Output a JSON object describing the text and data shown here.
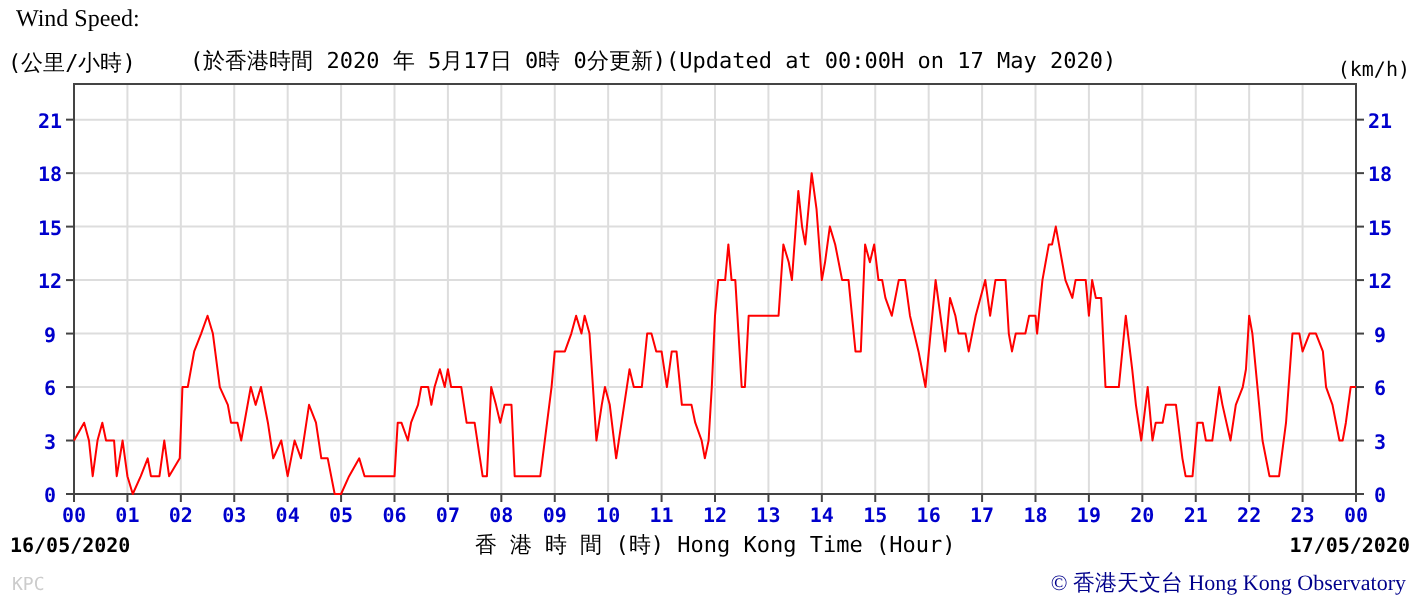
{
  "chart_data": {
    "type": "line",
    "title": "Wind Speed:",
    "subtitle": "(於香港時間 2020 年 5月17日 0時 0分更新)(Updated at 00:00H on 17 May 2020)",
    "ylabel": "(公里/小時)",
    "y2label": "(km/h)",
    "xlabel": "香 港 時 間 (時)  Hong Kong Time (Hour)",
    "annotations": [
      "16/05/2020",
      "17/05/2020",
      "KPC",
      "© 香港天文台 Hong Kong Observatory"
    ],
    "xlim": [
      0,
      24
    ],
    "xticks": [
      {
        "value": 0,
        "label": "00"
      },
      {
        "value": 1,
        "label": "01"
      },
      {
        "value": 2,
        "label": "02"
      },
      {
        "value": 3,
        "label": "03"
      },
      {
        "value": 4,
        "label": "04"
      },
      {
        "value": 5,
        "label": "05"
      },
      {
        "value": 6,
        "label": "06"
      },
      {
        "value": 7,
        "label": "07"
      },
      {
        "value": 8,
        "label": "08"
      },
      {
        "value": 9,
        "label": "09"
      },
      {
        "value": 10,
        "label": "10"
      },
      {
        "value": 11,
        "label": "11"
      },
      {
        "value": 12,
        "label": "12"
      },
      {
        "value": 13,
        "label": "13"
      },
      {
        "value": 14,
        "label": "14"
      },
      {
        "value": 15,
        "label": "15"
      },
      {
        "value": 16,
        "label": "16"
      },
      {
        "value": 17,
        "label": "17"
      },
      {
        "value": 18,
        "label": "18"
      },
      {
        "value": 19,
        "label": "19"
      },
      {
        "value": 20,
        "label": "20"
      },
      {
        "value": 21,
        "label": "21"
      },
      {
        "value": 22,
        "label": "22"
      },
      {
        "value": 23,
        "label": "23"
      },
      {
        "value": 24,
        "label": "00"
      }
    ],
    "ylim": [
      0,
      23
    ],
    "yticks": [
      0,
      3,
      6,
      9,
      12,
      15,
      18,
      21
    ],
    "y2lim": [
      0,
      23
    ],
    "y2ticks": [
      0,
      3,
      6,
      9,
      12,
      15,
      18,
      21
    ],
    "grid": true,
    "marker": "none",
    "line_style": "solid",
    "x": [
      0,
      0.19,
      0.28,
      0.35,
      0.44,
      0.53,
      0.6,
      0.75,
      0.8,
      0.91,
      1.0,
      1.1,
      1.25,
      1.38,
      1.44,
      1.6,
      1.69,
      1.78,
      1.98,
      2.03,
      2.13,
      2.25,
      2.38,
      2.5,
      2.6,
      2.73,
      2.88,
      2.94,
      3.06,
      3.13,
      3.31,
      3.4,
      3.5,
      3.63,
      3.73,
      3.88,
      4.0,
      4.13,
      4.25,
      4.4,
      4.53,
      4.63,
      4.75,
      4.88,
      5.0,
      5.15,
      5.34,
      5.44,
      5.63,
      5.75,
      6.0,
      6.06,
      6.13,
      6.25,
      6.31,
      6.44,
      6.5,
      6.63,
      6.69,
      6.75,
      6.85,
      6.94,
      7.0,
      7.06,
      7.25,
      7.35,
      7.5,
      7.6,
      7.65,
      7.73,
      7.81,
      7.9,
      7.98,
      8.06,
      8.19,
      8.25,
      8.38,
      8.73,
      8.94,
      9.0,
      9.19,
      9.31,
      9.4,
      9.5,
      9.56,
      9.65,
      9.78,
      9.88,
      9.94,
      10.03,
      10.15,
      10.25,
      10.35,
      10.4,
      10.48,
      10.63,
      10.73,
      10.81,
      10.9,
      11.0,
      11.1,
      11.19,
      11.28,
      11.38,
      11.56,
      11.63,
      11.75,
      11.81,
      11.88,
      11.94,
      12.0,
      12.06,
      12.19,
      12.25,
      12.31,
      12.38,
      12.5,
      12.56,
      12.63,
      13.19,
      13.28,
      13.38,
      13.44,
      13.56,
      13.63,
      13.69,
      13.81,
      13.9,
      14.0,
      14.06,
      14.15,
      14.25,
      14.38,
      14.5,
      14.63,
      14.73,
      14.81,
      14.9,
      14.98,
      15.06,
      15.13,
      15.19,
      15.31,
      15.44,
      15.56,
      15.65,
      15.81,
      15.94,
      16.13,
      16.31,
      16.4,
      16.5,
      16.56,
      16.69,
      16.75,
      16.88,
      17.06,
      17.15,
      17.25,
      17.44,
      17.5,
      17.56,
      17.63,
      17.81,
      17.88,
      18.0,
      18.03,
      18.13,
      18.19,
      18.25,
      18.31,
      18.38,
      18.44,
      18.5,
      18.56,
      18.69,
      18.75,
      18.94,
      19.0,
      19.06,
      19.13,
      19.23,
      19.31,
      19.56,
      19.69,
      19.81,
      19.88,
      19.98,
      20.06,
      20.1,
      20.19,
      20.25,
      20.38,
      20.44,
      20.63,
      20.75,
      20.81,
      20.94,
      21.03,
      21.13,
      21.19,
      21.31,
      21.44,
      21.5,
      21.65,
      21.75,
      21.88,
      21.94,
      22.0,
      22.06,
      22.25,
      22.38,
      22.56,
      22.69,
      22.81,
      22.94,
      23.0,
      23.13,
      23.25,
      23.38,
      23.44,
      23.56,
      23.69,
      23.75,
      23.81,
      23.9,
      24.0
    ],
    "series": [
      {
        "color": "#ff0000",
        "values": [
          3,
          4,
          3,
          1,
          3,
          4,
          3,
          3,
          1,
          3,
          1,
          0,
          1,
          2,
          1,
          1,
          3,
          1,
          2,
          6,
          6,
          8,
          9,
          10,
          9,
          6,
          5,
          4,
          4,
          3,
          6,
          5,
          6,
          4,
          2,
          3,
          1,
          3,
          2,
          5,
          4,
          2,
          2,
          0,
          0,
          1,
          2,
          1,
          1,
          1,
          1,
          4,
          4,
          3,
          4,
          5,
          6,
          6,
          5,
          6,
          7,
          6,
          7,
          6,
          6,
          4,
          4,
          2,
          1,
          1,
          6,
          5,
          4,
          5,
          5,
          1,
          1,
          1,
          6,
          8,
          8,
          9,
          10,
          9,
          10,
          9,
          3,
          5,
          6,
          5,
          2,
          4,
          6,
          7,
          6,
          6,
          9,
          9,
          8,
          8,
          6,
          8,
          8,
          5,
          5,
          4,
          3,
          2,
          3,
          6,
          10,
          12,
          12,
          14,
          12,
          12,
          6,
          6,
          10,
          10,
          14,
          13,
          12,
          17,
          15,
          14,
          18,
          16,
          12,
          13,
          15,
          14,
          12,
          12,
          8,
          8,
          14,
          13,
          14,
          12,
          12,
          11,
          10,
          12,
          12,
          10,
          8,
          6,
          12,
          8,
          11,
          10,
          9,
          9,
          8,
          10,
          12,
          10,
          12,
          12,
          9,
          8,
          9,
          9,
          10,
          10,
          9,
          12,
          13,
          14,
          14,
          15,
          14,
          13,
          12,
          11,
          12,
          12,
          10,
          12,
          11,
          11,
          6,
          6,
          10,
          7,
          5,
          3,
          5,
          6,
          3,
          4,
          4,
          5,
          5,
          2,
          1,
          1,
          4,
          4,
          3,
          3,
          6,
          5,
          3,
          5,
          6,
          7,
          10,
          9,
          3,
          1,
          1,
          4,
          9,
          9,
          8,
          9,
          9,
          8,
          6,
          5,
          3,
          3,
          4,
          6,
          6
        ]
      }
    ]
  }
}
